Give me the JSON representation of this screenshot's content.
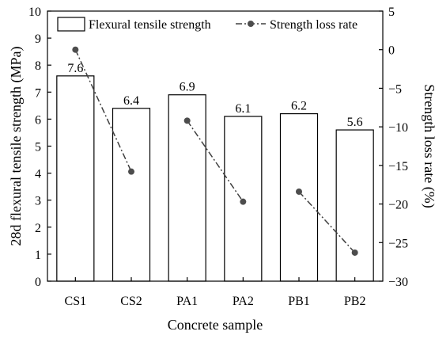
{
  "chart_data": {
    "type": "bar",
    "categories": [
      "CS1",
      "CS2",
      "PA1",
      "PA2",
      "PB1",
      "PB2"
    ],
    "series": [
      {
        "name": "Flexural tensile strength",
        "type": "bar",
        "axis": "left",
        "values": [
          7.6,
          6.4,
          6.9,
          6.1,
          6.2,
          5.6
        ],
        "labels": [
          "7.6",
          "6.4",
          "6.9",
          "6.1",
          "6.2",
          "5.6"
        ]
      },
      {
        "name": "Strength loss rate",
        "type": "line",
        "axis": "right",
        "values": [
          0,
          -15.8,
          -9.2,
          -19.7,
          -18.4,
          -26.3
        ]
      }
    ],
    "title": "",
    "xlabel": "Concrete sample",
    "ylabel": "28d flexural tensile strength (MPa)",
    "y2label": "Strength loss rate (%)",
    "ylim": [
      0,
      10
    ],
    "y2lim": [
      -30,
      5
    ],
    "yticks": [
      "0",
      "1",
      "2",
      "3",
      "4",
      "5",
      "6",
      "7",
      "8",
      "9",
      "10"
    ],
    "y2ticks": [
      "5",
      "0",
      "−5",
      "−10",
      "−15",
      "−20",
      "−25",
      "−30"
    ],
    "legend_position": "top",
    "grid": false,
    "colors": {
      "bar_edge": "#000000",
      "bar_fill": "#ffffff",
      "line": "#404040",
      "marker": "#4d4d4d"
    }
  }
}
